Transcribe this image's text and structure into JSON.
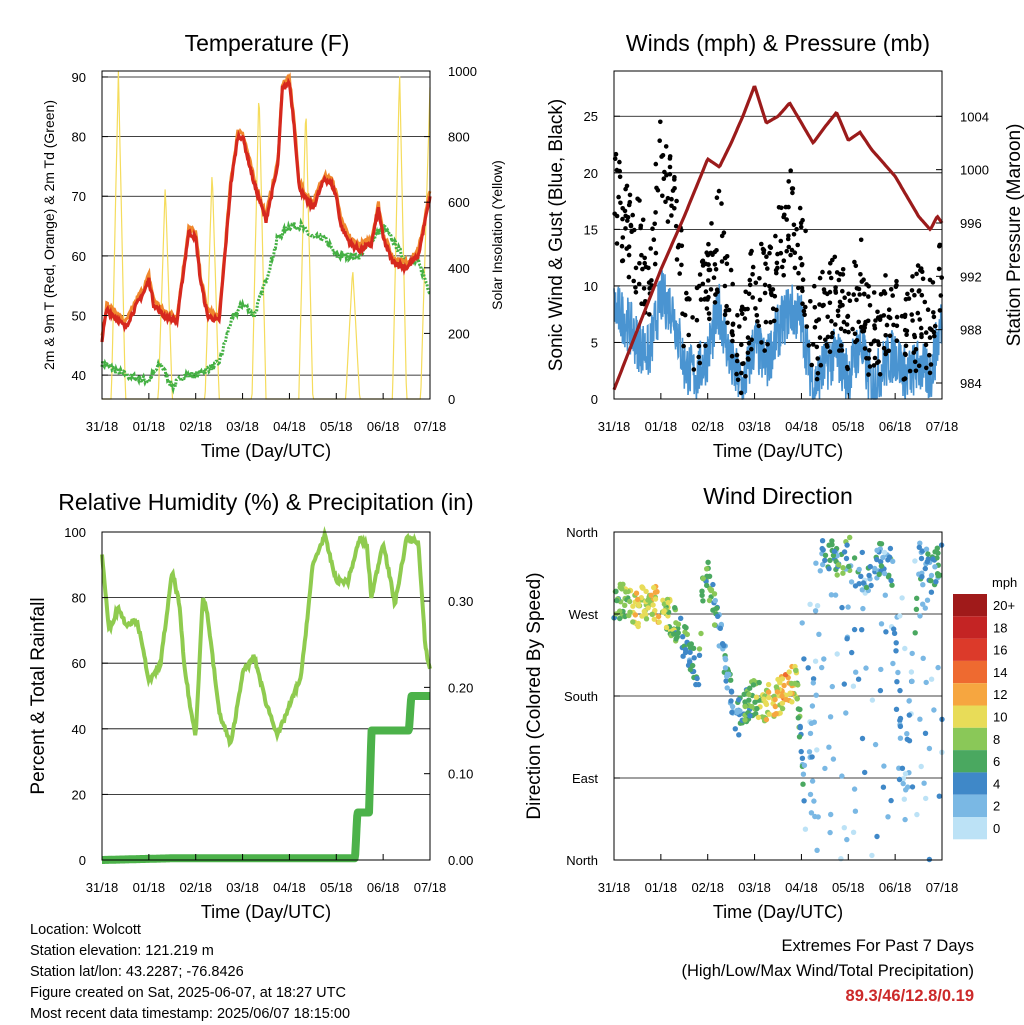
{
  "time_ticks": [
    "31/18",
    "01/18",
    "02/18",
    "03/18",
    "04/18",
    "05/18",
    "06/18",
    "07/18"
  ],
  "time_label": "Time (Day/UTC)",
  "colors": {
    "temp2m": "#d6281e",
    "temp9m": "#f0882e",
    "dewpoint": "#44b043",
    "solar": "#f5dc5c",
    "gust": "#000000",
    "wind": "#4a94d1",
    "pressure": "#9b1b1b",
    "rh": "#8fcb4f",
    "precip": "#4cb24a"
  },
  "panels": {
    "temperature": {
      "title": "Temperature (F)",
      "ylabel_left": "2m & 9m T (Red, Orange) & 2m Td (Green)",
      "ylabel_right": "Solar Insolation (Yellow)",
      "left_ticks": [
        "40",
        "50",
        "60",
        "70",
        "80",
        "90"
      ],
      "right_ticks": [
        "0",
        "200",
        "400",
        "600",
        "800",
        "1000"
      ]
    },
    "winds": {
      "title": "Winds (mph) & Pressure (mb)",
      "ylabel_left": "Sonic Wind & Gust (Blue, Black)",
      "ylabel_right": "Station Pressure (Maroon)",
      "left_ticks": [
        "0",
        "5",
        "10",
        "15",
        "20",
        "25"
      ],
      "right_ticks": [
        "984",
        "988",
        "992",
        "996",
        "1000",
        "1004"
      ]
    },
    "humidity": {
      "title": "Relative Humidity (%) & Precipitation (in)",
      "ylabel_left": "Percent & Total Rainfall",
      "left_ticks": [
        "0",
        "20",
        "40",
        "60",
        "80",
        "100"
      ],
      "right_ticks": [
        "0.00",
        "0.10",
        "0.20",
        "0.30"
      ]
    },
    "direction": {
      "title": "Wind Direction",
      "ylabel_left": "Direction (Colored By Speed)",
      "dir_ticks": [
        "North",
        "East",
        "South",
        "West",
        "North"
      ],
      "legend_title": "mph",
      "legend_labels": [
        "20+",
        "18",
        "16",
        "14",
        "12",
        "10",
        "8",
        "6",
        "4",
        "2",
        "0"
      ],
      "legend_colors": [
        "#a01a1a",
        "#c42424",
        "#dc3a2a",
        "#ee6a30",
        "#f6a640",
        "#e8dc58",
        "#8ac858",
        "#4aa860",
        "#3f88c8",
        "#7ab8e4",
        "#bce2f6"
      ]
    }
  },
  "footer": {
    "location": "Location: Wolcott",
    "elevation": "Station elevation: 121.219 m",
    "latlon": "Station lat/lon: 43.2287; -76.8426",
    "created": "Figure created on Sat, 2025-06-07, at 18:27 UTC",
    "recent": "Most recent data timestamp: 2025/06/07 18:15:00"
  },
  "extremes": {
    "heading": "Extremes For Past 7 Days",
    "subheading": "(High/Low/Max Wind/Total Precipitation)",
    "value": "89.3/46/12.8/0.19"
  },
  "chart_data": [
    {
      "type": "line",
      "title": "Temperature (F)",
      "xlabel": "Time (Day/UTC)",
      "ylabel": "2m & 9m T (Red, Orange) & 2m Td (Green)",
      "ylabel_right": "Solar Insolation (Yellow)",
      "x_unit": "days since 31/18",
      "xlim": [
        0,
        7
      ],
      "ylim": [
        36,
        91
      ],
      "ylim_right": [
        0,
        1000
      ],
      "series": [
        {
          "name": "2m T",
          "axis": "left",
          "x": [
            0,
            0.1,
            0.25,
            0.5,
            0.75,
            0.9,
            1.0,
            1.1,
            1.3,
            1.6,
            1.75,
            1.85,
            2.0,
            2.1,
            2.25,
            2.5,
            2.6,
            2.75,
            2.9,
            3.0,
            3.25,
            3.5,
            3.75,
            3.85,
            4.0,
            4.1,
            4.2,
            4.3,
            4.5,
            4.75,
            4.9,
            5.0,
            5.1,
            5.3,
            5.5,
            5.75,
            5.9,
            6.0,
            6.2,
            6.5,
            6.75,
            6.85,
            7.0
          ],
          "values": [
            46,
            51,
            50,
            48,
            52,
            54,
            56,
            52,
            50,
            49,
            58,
            64,
            63,
            56,
            50,
            49,
            58,
            72,
            80,
            80,
            72,
            66,
            75,
            88,
            89,
            82,
            72,
            70,
            68,
            73,
            72,
            70,
            65,
            62,
            61,
            62,
            68,
            63,
            59,
            58,
            60,
            64,
            70
          ]
        },
        {
          "name": "2m Td",
          "axis": "left",
          "x": [
            0,
            0.5,
            1.0,
            1.25,
            1.5,
            1.75,
            2.0,
            2.25,
            2.5,
            2.75,
            3.0,
            3.25,
            3.5,
            3.75,
            4.0,
            4.25,
            4.5,
            4.75,
            5.0,
            5.5,
            6.0,
            6.5,
            6.75,
            7.0
          ],
          "values": [
            42,
            40,
            39,
            42,
            38,
            40,
            40,
            41,
            42,
            49,
            52,
            50,
            56,
            63,
            65,
            65,
            63,
            63,
            60,
            60,
            65,
            59,
            59,
            54
          ]
        },
        {
          "name": "Solar",
          "axis": "right",
          "x": [
            0.2,
            0.35,
            0.5,
            1.2,
            1.35,
            1.5,
            2.2,
            2.35,
            2.5,
            3.2,
            3.35,
            3.5,
            4.2,
            4.35,
            4.5,
            5.2,
            5.35,
            5.5,
            6.2,
            6.35,
            6.5,
            6.8,
            7.0
          ],
          "values": [
            0,
            1000,
            0,
            0,
            650,
            0,
            0,
            700,
            0,
            0,
            950,
            0,
            0,
            900,
            0,
            0,
            400,
            0,
            0,
            1000,
            0,
            0,
            950
          ]
        }
      ]
    },
    {
      "type": "line",
      "title": "Winds (mph) & Pressure (mb)",
      "xlabel": "Time (Day/UTC)",
      "ylabel": "Sonic Wind & Gust (Blue, Black)",
      "ylabel_right": "Station Pressure (Maroon)",
      "x_unit": "days since 31/18",
      "xlim": [
        0,
        7
      ],
      "ylim": [
        0,
        29
      ],
      "ylim_right": [
        982.8,
        1007.4
      ],
      "series": [
        {
          "name": "Pressure",
          "axis": "right",
          "x": [
            0,
            0.5,
            1.0,
            1.5,
            2.0,
            2.25,
            2.5,
            2.75,
            3.0,
            3.25,
            3.5,
            3.75,
            4.0,
            4.25,
            4.5,
            4.75,
            5.0,
            5.25,
            5.5,
            5.75,
            6.0,
            6.25,
            6.5,
            6.75,
            6.9,
            7.0
          ],
          "values": [
            983.5,
            988,
            992.5,
            996.5,
            1000.8,
            1000.2,
            1002,
            1004,
            1006.3,
            1003.5,
            1004,
            1005,
            1003.5,
            1002,
            1003.2,
            1004.3,
            1002.2,
            1002.8,
            1001.5,
            1000.5,
            999.5,
            998,
            996.5,
            995.5,
            996.5,
            996
          ]
        },
        {
          "name": "Gust",
          "axis": "left",
          "x": [
            0,
            0.25,
            0.5,
            0.75,
            1.0,
            1.25,
            1.5,
            1.75,
            2.0,
            2.25,
            2.5,
            2.75,
            3.0,
            3.25,
            3.5,
            3.75,
            4.0,
            4.25,
            4.5,
            4.75,
            5.0,
            5.25,
            5.5,
            5.75,
            6.0,
            6.25,
            6.5,
            6.75,
            7.0
          ],
          "values": [
            18,
            15,
            13,
            11,
            20,
            17,
            8,
            6,
            9,
            14,
            7,
            4,
            10,
            8,
            12,
            16,
            13,
            5,
            7,
            9,
            6,
            10,
            4,
            7,
            8,
            5,
            7,
            6,
            12
          ]
        },
        {
          "name": "Wind",
          "axis": "left",
          "x": [
            0,
            0.25,
            0.5,
            0.75,
            1.0,
            1.25,
            1.5,
            1.75,
            2.0,
            2.25,
            2.5,
            2.75,
            3.0,
            3.25,
            3.5,
            3.75,
            4.0,
            4.25,
            4.5,
            4.75,
            5.0,
            5.25,
            5.5,
            5.75,
            6.0,
            6.25,
            6.5,
            6.75,
            7.0
          ],
          "values": [
            8,
            7,
            5,
            4,
            9,
            8,
            3,
            2,
            4,
            8,
            3,
            1,
            5,
            3,
            6,
            8,
            7,
            1,
            3,
            4,
            2,
            5,
            1,
            3,
            4,
            2,
            3,
            2,
            7
          ]
        }
      ]
    },
    {
      "type": "line",
      "title": "Relative Humidity (%) & Precipitation (in)",
      "xlabel": "Time (Day/UTC)",
      "ylabel": "Percent & Total Rainfall",
      "x_unit": "days since 31/18",
      "xlim": [
        0,
        7
      ],
      "ylim": [
        0,
        100
      ],
      "ylim_right": [
        0,
        0.38
      ],
      "series": [
        {
          "name": "RH",
          "axis": "left",
          "x": [
            0,
            0.15,
            0.35,
            0.5,
            0.75,
            1.0,
            1.1,
            1.25,
            1.5,
            1.65,
            1.75,
            1.9,
            2.0,
            2.15,
            2.25,
            2.5,
            2.75,
            3.0,
            3.25,
            3.5,
            3.75,
            4.0,
            4.25,
            4.5,
            4.75,
            5.0,
            5.25,
            5.5,
            5.65,
            5.75,
            6.0,
            6.25,
            6.5,
            6.75,
            6.9,
            7.0
          ],
          "values": [
            93,
            70,
            77,
            72,
            73,
            55,
            56,
            60,
            88,
            78,
            60,
            45,
            38,
            80,
            75,
            45,
            35,
            57,
            62,
            48,
            38,
            47,
            56,
            90,
            99,
            85,
            85,
            98,
            96,
            80,
            97,
            78,
            98,
            97,
            65,
            58
          ]
        },
        {
          "name": "Precipitation",
          "axis": "right",
          "x": [
            0,
            1.5,
            5.4,
            5.45,
            5.7,
            5.75,
            6.55,
            6.6,
            7.0
          ],
          "values": [
            0,
            0.002,
            0.002,
            0.055,
            0.055,
            0.15,
            0.15,
            0.19,
            0.19
          ]
        }
      ]
    },
    {
      "type": "scatter",
      "title": "Wind Direction",
      "xlabel": "Time (Day/UTC)",
      "ylabel": "Direction (Colored By Speed)",
      "x_unit": "days since 31/18",
      "xlim": [
        0,
        7
      ],
      "ylim": [
        0,
        360
      ],
      "series": [
        {
          "name": "Direction",
          "x": [
            0.1,
            0.3,
            0.5,
            0.7,
            0.9,
            1.1,
            1.3,
            1.6,
            1.8,
            1.9,
            2.0,
            2.3,
            2.6,
            2.8,
            3.0,
            3.2,
            3.5,
            3.7,
            3.9,
            4.1,
            4.4,
            4.6,
            4.8,
            5.0,
            5.3,
            5.6,
            5.9,
            6.2,
            6.5,
            6.8,
            7.0
          ],
          "values": [
            285,
            280,
            275,
            285,
            280,
            275,
            260,
            230,
            200,
            300,
            310,
            240,
            150,
            170,
            180,
            170,
            180,
            185,
            200,
            40,
            330,
            340,
            320,
            340,
            300,
            330,
            330,
            60,
            330,
            320,
            330
          ],
          "speeds": [
            7,
            9,
            10,
            8,
            11,
            9,
            7,
            5,
            5,
            7,
            7,
            3,
            4,
            6,
            7,
            9,
            10,
            12,
            8,
            2,
            3,
            6,
            5,
            7,
            3,
            4,
            5,
            2,
            4,
            4,
            6
          ]
        }
      ]
    }
  ]
}
